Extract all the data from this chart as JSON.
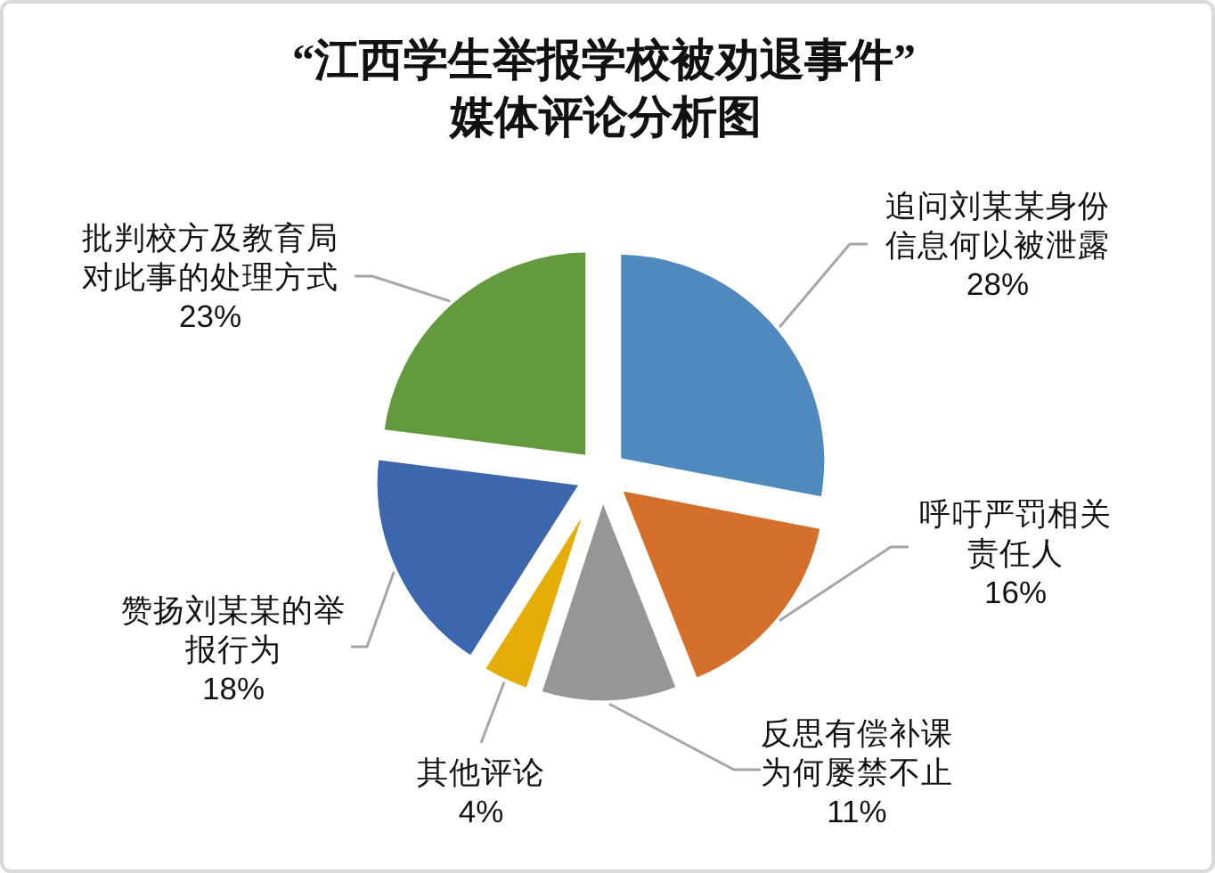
{
  "chart_data": {
    "type": "pie",
    "title": "“江西学生举报学校被劝退事件”",
    "subtitle": "媒体评论分析图",
    "categories": [
      "追问刘某某身份信息何以被泄露",
      "呼吁严罚相关责任人",
      "反思有偿补课为何屡禁不止",
      "其他评论",
      "赞扬刘某某的举报行为",
      "批判校方及教育局对此事的处理方式"
    ],
    "values": [
      28,
      16,
      11,
      4,
      18,
      23
    ],
    "colors": [
      "#4f89be",
      "#d4702b",
      "#969696",
      "#e5ad06",
      "#3c66ae",
      "#649a3e"
    ],
    "value_labels": [
      "28%",
      "16%",
      "11%",
      "4%",
      "18%",
      "23%"
    ]
  }
}
